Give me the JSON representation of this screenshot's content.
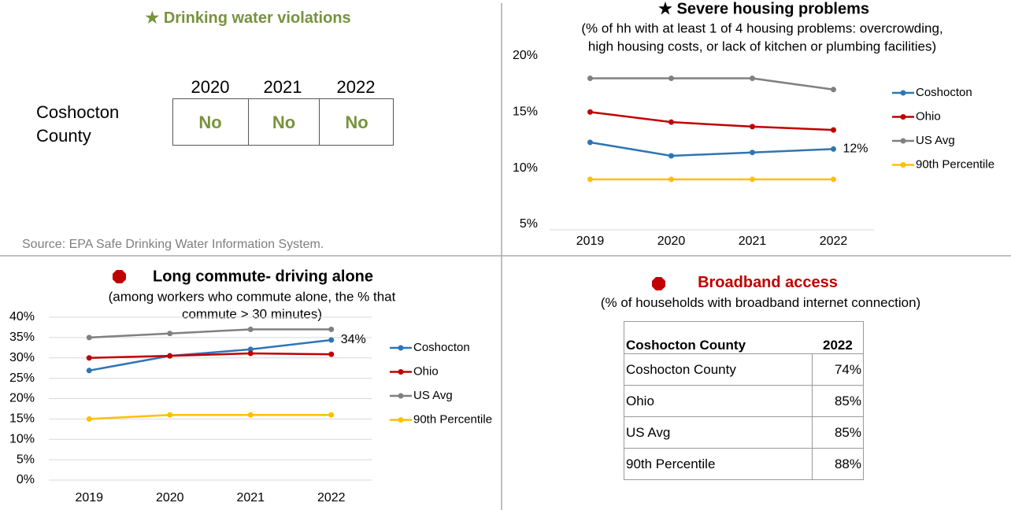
{
  "drinking_water": {
    "title": "★ Drinking water violations",
    "years": [
      "2020",
      "2021",
      "2022"
    ],
    "row_label": "Coshocton County",
    "values": [
      "No",
      "No",
      "No"
    ],
    "source": "Source: EPA Safe Drinking Water Information System."
  },
  "chart_data": [
    {
      "type": "line",
      "title": "★ Severe housing problems",
      "subtitle": [
        "(% of hh with at least 1 of 4 housing problems: overcrowding,",
        "high housing costs, or lack of kitchen or plumbing facilities)"
      ],
      "categories": [
        "2019",
        "2020",
        "2021",
        "2022"
      ],
      "series": [
        {
          "name": "Coshocton",
          "color": "#2e75b6",
          "values": [
            12.3,
            11.1,
            11.4,
            11.7
          ],
          "value_labels": [
            null,
            null,
            null,
            "12%"
          ]
        },
        {
          "name": "Ohio",
          "color": "#c00000",
          "values": [
            15.0,
            14.1,
            13.7,
            13.4
          ]
        },
        {
          "name": "US Avg",
          "color": "#808080",
          "values": [
            18.0,
            18.0,
            18.0,
            17.0
          ]
        },
        {
          "name": "90th Percentile",
          "color": "#ffc000",
          "values": [
            9.0,
            9.0,
            9.0,
            9.0
          ]
        }
      ],
      "ylim": [
        5,
        20
      ],
      "yticks": [
        {
          "value": 5,
          "label": "5%"
        },
        {
          "value": 10,
          "label": "10%"
        },
        {
          "value": 15,
          "label": "15%"
        },
        {
          "value": 20,
          "label": "20%"
        }
      ],
      "grid": false,
      "legend": "right"
    },
    {
      "type": "line",
      "title": "Long commute- driving alone",
      "subtitle": [
        "(among workers who commute alone, the % that",
        "commute > 30 minutes)"
      ],
      "categories": [
        "2019",
        "2020",
        "2021",
        "2022"
      ],
      "series": [
        {
          "name": "Coshocton",
          "color": "#2e75b6",
          "values": [
            26.9,
            30.5,
            32.1,
            34.4
          ],
          "value_labels": [
            null,
            null,
            null,
            "34%"
          ]
        },
        {
          "name": "Ohio",
          "color": "#c00000",
          "values": [
            30.0,
            30.5,
            31.1,
            30.9
          ]
        },
        {
          "name": "US Avg",
          "color": "#808080",
          "values": [
            35,
            36,
            37,
            37
          ]
        },
        {
          "name": "90th Percentile",
          "color": "#ffc000",
          "values": [
            15,
            16,
            16,
            16
          ]
        }
      ],
      "ylim": [
        0,
        40
      ],
      "yticks": [
        {
          "value": 0,
          "label": "0%"
        },
        {
          "value": 5,
          "label": "5%"
        },
        {
          "value": 10,
          "label": "10%"
        },
        {
          "value": 15,
          "label": "15%"
        },
        {
          "value": 20,
          "label": "20%"
        },
        {
          "value": 25,
          "label": "25%"
        },
        {
          "value": 30,
          "label": "30%"
        },
        {
          "value": 35,
          "label": "35%"
        },
        {
          "value": 40,
          "label": "40%"
        }
      ],
      "grid": true,
      "legend": "right"
    }
  ],
  "broadband": {
    "title": "Broadband access",
    "subtitle": "(% of households with broadband internet connection)",
    "header": [
      "Coshocton County",
      "2022"
    ],
    "rows": [
      [
        "Coshocton County",
        "74%"
      ],
      [
        "Ohio",
        "85%"
      ],
      [
        "US Avg",
        "85%"
      ],
      [
        "90th Percentile",
        "88%"
      ]
    ]
  }
}
